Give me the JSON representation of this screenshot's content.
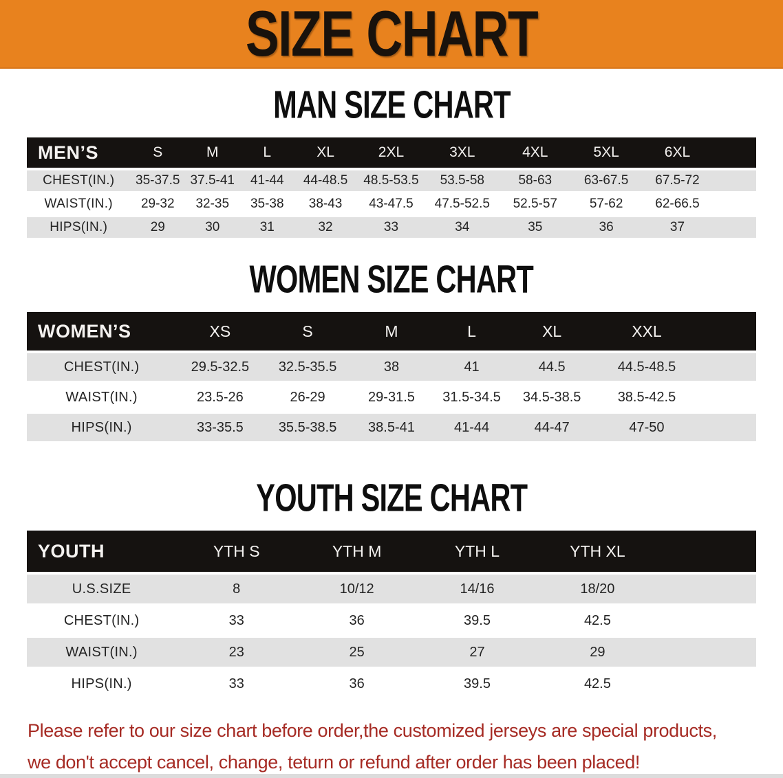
{
  "banner": {
    "title": "SIZE CHART",
    "bg_color": "#E8821E",
    "text_color": "#19120C"
  },
  "chart_data": [
    {
      "type": "table",
      "title": "MAN SIZE CHART",
      "header_label": "MEN’S",
      "columns": [
        "S",
        "M",
        "L",
        "XL",
        "2XL",
        "3XL",
        "4XL",
        "5XL",
        "6XL"
      ],
      "rows": [
        {
          "label": "CHEST(IN.)",
          "values": [
            "35-37.5",
            "37.5-41",
            "41-44",
            "44-48.5",
            "48.5-53.5",
            "53.5-58",
            "58-63",
            "63-67.5",
            "67.5-72"
          ]
        },
        {
          "label": "WAIST(IN.)",
          "values": [
            "29-32",
            "32-35",
            "35-38",
            "38-43",
            "43-47.5",
            "47.5-52.5",
            "52.5-57",
            "57-62",
            "62-66.5"
          ]
        },
        {
          "label": "HIPS(IN.)",
          "values": [
            "29",
            "30",
            "31",
            "32",
            "33",
            "34",
            "35",
            "36",
            "37"
          ]
        }
      ]
    },
    {
      "type": "table",
      "title": "WOMEN SIZE CHART",
      "header_label": "WOMEN’S",
      "columns": [
        "XS",
        "S",
        "M",
        "L",
        "XL",
        "XXL"
      ],
      "rows": [
        {
          "label": "CHEST(IN.)",
          "values": [
            "29.5-32.5",
            "32.5-35.5",
            "38",
            "41",
            "44.5",
            "44.5-48.5"
          ]
        },
        {
          "label": "WAIST(IN.)",
          "values": [
            "23.5-26",
            "26-29",
            "29-31.5",
            "31.5-34.5",
            "34.5-38.5",
            "38.5-42.5"
          ]
        },
        {
          "label": "HIPS(IN.)",
          "values": [
            "33-35.5",
            "35.5-38.5",
            "38.5-41",
            "41-44",
            "44-47",
            "47-50"
          ]
        }
      ]
    },
    {
      "type": "table",
      "title": "YOUTH SIZE CHART",
      "header_label": "YOUTH",
      "columns": [
        "YTH S",
        "YTH M",
        "YTH L",
        "YTH XL"
      ],
      "rows": [
        {
          "label": "U.S.SIZE",
          "values": [
            "8",
            "10/12",
            "14/16",
            "18/20"
          ]
        },
        {
          "label": "CHEST(IN.)",
          "values": [
            "33",
            "36",
            "39.5",
            "42.5"
          ]
        },
        {
          "label": "WAIST(IN.)",
          "values": [
            "23",
            "25",
            "27",
            "29"
          ]
        },
        {
          "label": "HIPS(IN.)",
          "values": [
            "33",
            "36",
            "39.5",
            "42.5"
          ]
        }
      ]
    }
  ],
  "disclaimer": {
    "line1": "Please refer to our size chart before order,the customized jerseys are special products,",
    "line2": "we don't accept cancel, change, teturn or refund after order has been placed!",
    "color": "#A62B24"
  },
  "colors": {
    "banner_bg": "#E8821E",
    "table_header_bar": "#1B1714",
    "row_stripe_gray": "#E1E1E1",
    "row_stripe_white": "#FFFFFF",
    "heading_text": "#0E0E0E",
    "disclaimer_red": "#A62B24"
  }
}
